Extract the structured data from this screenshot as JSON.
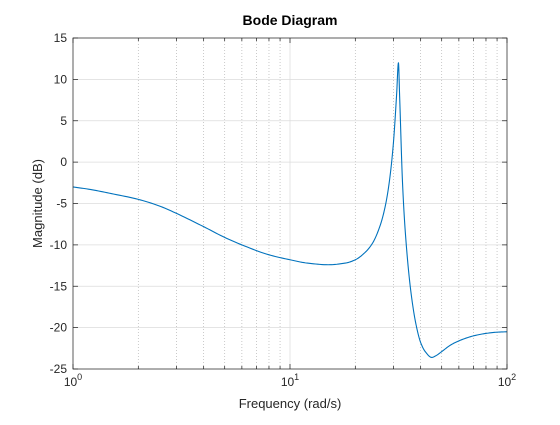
{
  "chart_data": {
    "type": "line",
    "title": "Bode Diagram",
    "xlabel": "Frequency (rad/s)",
    "ylabel": "Magnitude (dB)",
    "xscale": "log",
    "xlim": [
      1,
      100
    ],
    "ylim": [
      -25,
      15
    ],
    "grid": true,
    "minor_grid": true,
    "legend": "none",
    "xticks": [
      {
        "value": 1,
        "base": "10",
        "exp": "0"
      },
      {
        "value": 10,
        "base": "10",
        "exp": "1"
      },
      {
        "value": 100,
        "base": "10",
        "exp": "2"
      }
    ],
    "yticks": [
      {
        "value": 15,
        "label": "15"
      },
      {
        "value": 10,
        "label": "10"
      },
      {
        "value": 5,
        "label": "5"
      },
      {
        "value": 0,
        "label": "0"
      },
      {
        "value": -5,
        "label": "-5"
      },
      {
        "value": -10,
        "label": "-10"
      },
      {
        "value": -15,
        "label": "-15"
      },
      {
        "value": -20,
        "label": "-20"
      },
      {
        "value": -25,
        "label": "-25"
      }
    ],
    "series": [
      {
        "color": "#0072bd",
        "x": [
          1,
          1.2,
          1.5,
          2,
          2.5,
          3,
          4,
          5,
          6,
          8,
          10,
          12,
          15,
          18,
          20,
          22,
          24,
          26,
          27,
          28,
          29,
          30,
          31,
          31.6,
          32,
          33,
          34,
          36,
          38,
          40,
          42,
          45,
          47,
          50,
          55,
          60,
          70,
          80,
          90,
          100
        ],
        "y": [
          -3,
          -3.3,
          -3.8,
          -4.5,
          -5.3,
          -6.2,
          -7.8,
          -9.1,
          -10,
          -11.2,
          -11.8,
          -12.2,
          -12.4,
          -12.2,
          -11.8,
          -11,
          -9.8,
          -7.7,
          -6.2,
          -4.2,
          -1.4,
          2.5,
          8.2,
          12,
          8,
          -2.5,
          -8.5,
          -15.5,
          -19.5,
          -21.8,
          -22.9,
          -23.6,
          -23.4,
          -22.9,
          -22.1,
          -21.6,
          -21,
          -20.7,
          -20.55,
          -20.5
        ]
      }
    ]
  }
}
